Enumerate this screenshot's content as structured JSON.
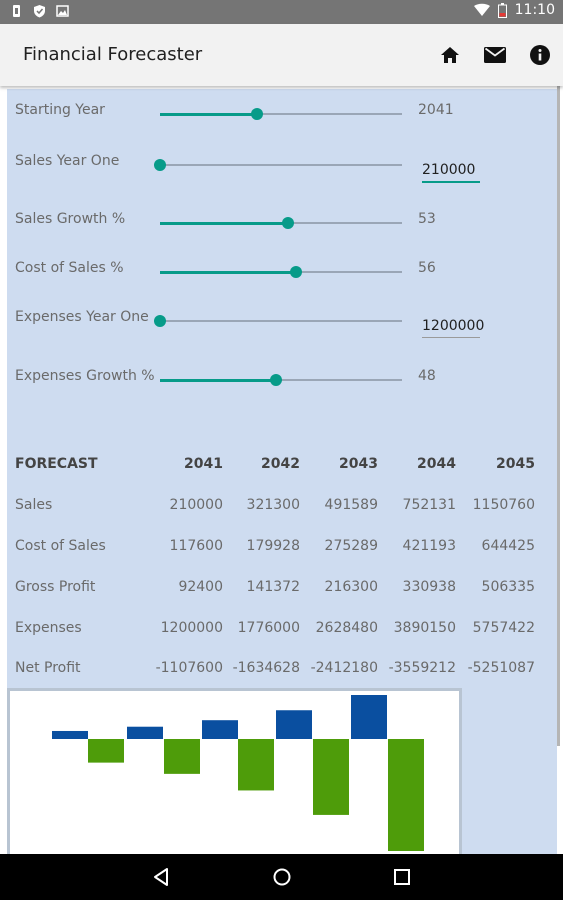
{
  "status": {
    "time": "11:10",
    "icons": [
      "notification-icon",
      "shield-icon",
      "image-icon",
      "wifi-icon",
      "battery-icon"
    ]
  },
  "app": {
    "title": "Financial Forecaster",
    "actions": [
      {
        "name": "home-icon"
      },
      {
        "name": "mail-icon"
      },
      {
        "name": "info-icon"
      }
    ]
  },
  "inputs": [
    {
      "label": "Starting Year",
      "value": "2041",
      "level": 0.4,
      "kind": "slider"
    },
    {
      "label": "Sales Year One",
      "value": "210000",
      "level": 0.0,
      "kind": "slider-edit",
      "focused": true
    },
    {
      "label": "Sales Growth %",
      "value": "53",
      "level": 0.53,
      "kind": "slider"
    },
    {
      "label": "Cost of Sales %",
      "value": "56",
      "level": 0.56,
      "kind": "slider"
    },
    {
      "label": "Expenses Year One",
      "value": "1200000",
      "level": 0.0,
      "kind": "slider-edit",
      "focused": false
    },
    {
      "label": "Expenses Growth %",
      "value": "48",
      "level": 0.48,
      "kind": "slider"
    }
  ],
  "table": {
    "header": [
      "FORECAST",
      "2041",
      "2042",
      "2043",
      "2044",
      "2045"
    ],
    "rows": [
      [
        "Sales",
        "210000",
        "321300",
        "491589",
        "752131",
        "1150760"
      ],
      [
        "Cost of Sales",
        "117600",
        "179928",
        "275289",
        "421193",
        "644425"
      ],
      [
        "Gross Profit",
        "92400",
        "141372",
        "216300",
        "330938",
        "506335"
      ],
      [
        "Expenses",
        "1200000",
        "1776000",
        "2628480",
        "3890150",
        "5757422"
      ],
      [
        "Net Profit",
        "-1107600",
        "-1634628",
        "-2412180",
        "-3559212",
        "-5251087"
      ]
    ]
  },
  "chart_data": {
    "type": "bar",
    "categories": [
      "2041",
      "2042",
      "2043",
      "2044",
      "2045"
    ],
    "series": [
      {
        "values": [
          92400,
          141372,
          216300,
          330938,
          506335
        ],
        "color": "#0a4fa0"
      },
      {
        "values": [
          -1107600,
          -1634628,
          -2412180,
          -3559212,
          -5251087
        ],
        "color": "#4e9c0a"
      }
    ],
    "grid": false,
    "legend": "none"
  },
  "colors": {
    "accent": "#079b89",
    "panel": "#cedcf0",
    "profit": "#0a4fa0",
    "loss": "#4e9c0a"
  }
}
